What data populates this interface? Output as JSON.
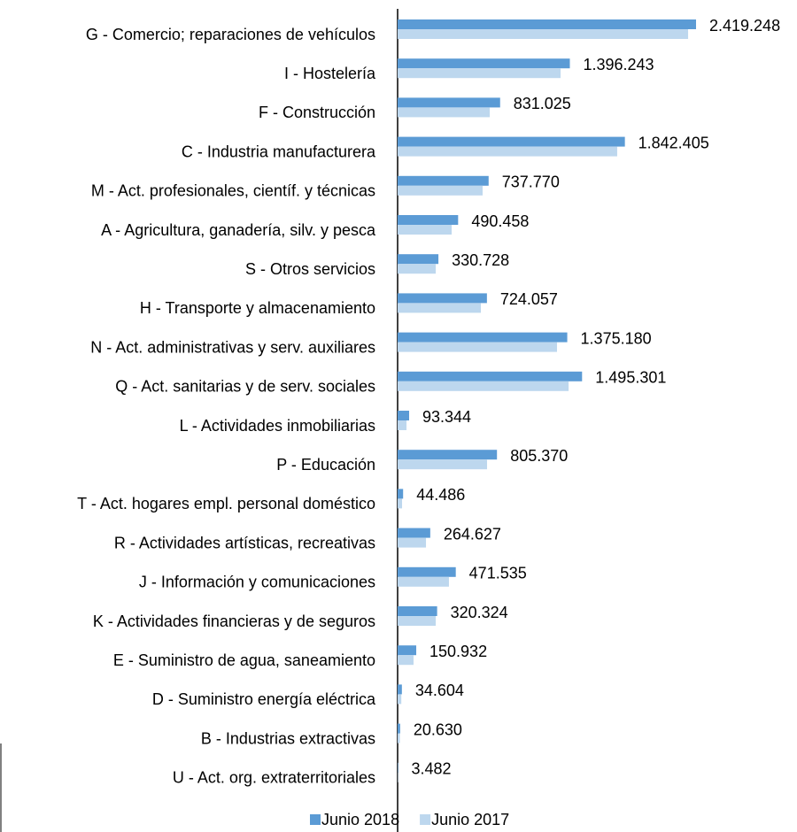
{
  "chart_data": {
    "type": "bar",
    "orientation": "horizontal",
    "categories": [
      "G - Comercio; reparaciones de vehículos",
      "I - Hostelería",
      "F - Construcción",
      "C - Industria manufacturera",
      "M - Act. profesionales, científ. y técnicas",
      "A - Agricultura, ganadería, silv. y pesca",
      "S - Otros servicios",
      "H - Transporte y almacenamiento",
      "N - Act. administrativas y serv. auxiliares",
      "Q - Act. sanitarias y de serv. sociales",
      "L - Actividades inmobiliarias",
      "P - Educación",
      "T - Act. hogares empl. personal doméstico",
      "R - Actividades artísticas, recreativas",
      "J - Información y comunicaciones",
      "K - Actividades financieras y de seguros",
      "E - Suministro de agua, saneamiento",
      "D - Suministro energía eléctrica",
      "B - Industrias extractivas",
      "U - Act. org. extraterritoriales"
    ],
    "series": [
      {
        "name": "Junio 2018",
        "color": "#5b9bd5",
        "values": [
          2419248,
          1396243,
          831025,
          1842405,
          737770,
          490458,
          330728,
          724057,
          1375180,
          1495301,
          93344,
          805370,
          44486,
          264627,
          471535,
          320324,
          150932,
          34604,
          20630,
          3482
        ],
        "value_labels": [
          "2.419.248",
          "1.396.243",
          "831.025",
          "1.842.405",
          "737.770",
          "490.458",
          "330.728",
          "724.057",
          "1.375.180",
          "1.495.301",
          "93.344",
          "805.370",
          "44.486",
          "264.627",
          "471.535",
          "320.324",
          "150.932",
          "34.604",
          "20.630",
          "3.482"
        ]
      },
      {
        "name": "Junio 2017",
        "color": "#bdd7ee",
        "values": [
          2355000,
          1321000,
          747000,
          1780000,
          689000,
          438000,
          309000,
          675000,
          1292000,
          1386000,
          72000,
          725000,
          36000,
          230000,
          416000,
          309000,
          129000,
          30000,
          18000,
          3000
        ]
      }
    ]
  }
}
